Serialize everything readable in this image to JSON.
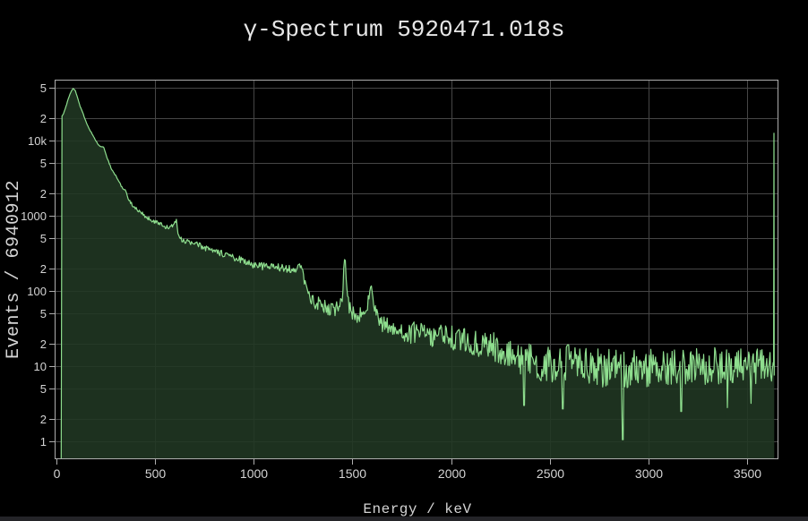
{
  "page": {
    "background": "#000000",
    "bottom_bar_color": "#242428"
  },
  "chart_data": {
    "type": "area",
    "title": "γ-Spectrum 5920471.018s",
    "xlabel": "Energy / keV",
    "ylabel": "Events / 6940912",
    "legend": false,
    "grid": true,
    "x_axis": {
      "unit": "keV",
      "min": -9,
      "max": 3659,
      "ticks": [
        {
          "v": 0,
          "label": "0"
        },
        {
          "v": 500,
          "label": "500"
        },
        {
          "v": 1000,
          "label": "1000"
        },
        {
          "v": 1500,
          "label": "1500"
        },
        {
          "v": 2000,
          "label": "2000"
        },
        {
          "v": 2500,
          "label": "2500"
        },
        {
          "v": 3000,
          "label": "3000"
        },
        {
          "v": 3500,
          "label": "3500"
        }
      ]
    },
    "y_axis": {
      "scale": "log",
      "min": 0.58,
      "max": 64000,
      "ticks": [
        {
          "v": 1,
          "label": "1"
        },
        {
          "v": 2,
          "label": "2"
        },
        {
          "v": 5,
          "label": "5"
        },
        {
          "v": 10,
          "label": "10"
        },
        {
          "v": 20,
          "label": "2"
        },
        {
          "v": 50,
          "label": "5"
        },
        {
          "v": 100,
          "label": "100"
        },
        {
          "v": 200,
          "label": "2"
        },
        {
          "v": 500,
          "label": "5"
        },
        {
          "v": 1000,
          "label": "1000"
        },
        {
          "v": 2000,
          "label": "2"
        },
        {
          "v": 5000,
          "label": "5"
        },
        {
          "v": 10000,
          "label": "10k"
        },
        {
          "v": 20000,
          "label": "2"
        },
        {
          "v": 50000,
          "label": "5"
        }
      ]
    },
    "colors": {
      "line": "#8ede8e",
      "fill": "rgba(33,56,35,0.88)",
      "grid": "#464646",
      "axis": "#adadad",
      "tick_text": "#d4d4d4",
      "title_text": "#e6e6e6"
    },
    "series": [
      {
        "name": "gamma-spectrum",
        "baseline_points": [
          [
            24,
            0.58
          ],
          [
            25,
            19000
          ],
          [
            27,
            21000
          ],
          [
            34,
            22000
          ],
          [
            40,
            24500
          ],
          [
            50,
            29500
          ],
          [
            62,
            37000
          ],
          [
            74,
            45000
          ],
          [
            85,
            49500
          ],
          [
            95,
            46500
          ],
          [
            105,
            39000
          ],
          [
            120,
            28500
          ],
          [
            137,
            22000
          ],
          [
            155,
            16500
          ],
          [
            170,
            13800
          ],
          [
            182,
            12000
          ],
          [
            200,
            9800
          ],
          [
            222,
            8300
          ],
          [
            232,
            8400
          ],
          [
            240,
            8100
          ],
          [
            252,
            6300
          ],
          [
            267,
            5000
          ],
          [
            285,
            3900
          ],
          [
            304,
            3250
          ],
          [
            320,
            2700
          ],
          [
            338,
            2300
          ],
          [
            348,
            2250
          ],
          [
            360,
            1750
          ],
          [
            372,
            1550
          ],
          [
            395,
            1280
          ],
          [
            425,
            1120
          ],
          [
            455,
            960
          ],
          [
            480,
            880
          ],
          [
            500,
            830
          ],
          [
            508,
            870
          ],
          [
            515,
            810
          ],
          [
            540,
            740
          ],
          [
            565,
            700
          ],
          [
            580,
            730
          ],
          [
            590,
            700
          ],
          [
            600,
            830
          ],
          [
            609,
            860
          ],
          [
            618,
            560
          ],
          [
            630,
            490
          ],
          [
            660,
            450
          ],
          [
            700,
            420
          ],
          [
            730,
            400
          ],
          [
            768,
            360
          ],
          [
            800,
            330
          ],
          [
            834,
            316
          ],
          [
            870,
            290
          ],
          [
            905,
            275
          ],
          [
            915,
            280
          ],
          [
            935,
            255
          ],
          [
            965,
            240
          ],
          [
            1000,
            225
          ],
          [
            1050,
            212
          ],
          [
            1090,
            208
          ],
          [
            1120,
            215
          ],
          [
            1145,
            200
          ],
          [
            1180,
            198
          ],
          [
            1210,
            200
          ],
          [
            1238,
            205
          ],
          [
            1250,
            190
          ],
          [
            1258,
            125
          ],
          [
            1270,
            100
          ],
          [
            1288,
            80
          ],
          [
            1310,
            70
          ],
          [
            1348,
            63
          ],
          [
            1390,
            59
          ],
          [
            1415,
            57
          ],
          [
            1437,
            65
          ],
          [
            1448,
            85
          ],
          [
            1455,
            160
          ],
          [
            1461,
            325
          ],
          [
            1468,
            160
          ],
          [
            1478,
            70
          ],
          [
            1490,
            54
          ],
          [
            1515,
            47
          ],
          [
            1535,
            45
          ],
          [
            1552,
            50
          ],
          [
            1570,
            60
          ],
          [
            1583,
            80
          ],
          [
            1593,
            112
          ],
          [
            1600,
            112
          ],
          [
            1612,
            55
          ],
          [
            1625,
            43
          ],
          [
            1650,
            36
          ],
          [
            1700,
            32
          ],
          [
            1750,
            30
          ],
          [
            1800,
            28
          ],
          [
            1850,
            26.5
          ],
          [
            1900,
            26
          ],
          [
            1950,
            24.5
          ],
          [
            2000,
            24
          ],
          [
            2050,
            22
          ],
          [
            2100,
            20.5
          ],
          [
            2150,
            19
          ],
          [
            2204,
            20
          ],
          [
            2230,
            17
          ],
          [
            2280,
            15
          ],
          [
            2330,
            13.5
          ],
          [
            2380,
            12.2
          ],
          [
            2430,
            11.2
          ],
          [
            2480,
            10.6
          ],
          [
            2530,
            10.2
          ],
          [
            2580,
            10.5
          ],
          [
            2614,
            13.5
          ],
          [
            2640,
            11
          ],
          [
            2665,
            10
          ],
          [
            2700,
            9.6
          ],
          [
            2760,
            9.4
          ],
          [
            2820,
            9.3
          ],
          [
            2870,
            9.2
          ],
          [
            2920,
            9.3
          ],
          [
            3000,
            9.5
          ],
          [
            3100,
            9.8
          ],
          [
            3200,
            10
          ],
          [
            3300,
            10
          ],
          [
            3400,
            10
          ],
          [
            3500,
            10.2
          ],
          [
            3600,
            10.2
          ],
          [
            3630,
            10.5
          ]
        ],
        "dips": [
          [
            2370,
            3
          ],
          [
            2565,
            2.7
          ],
          [
            2869,
            1.05
          ],
          [
            3165,
            2.5
          ],
          [
            3400,
            2.8
          ],
          [
            3520,
            3.2
          ]
        ],
        "overflow_spike": [
          [
            3634.5,
            10.3
          ],
          [
            3636,
            12500
          ],
          [
            3637.5,
            7.5
          ]
        ],
        "noise": {
          "seed": 20,
          "step_kev": 4,
          "spread": 1.8,
          "sigma_coeff": 0.4343,
          "sigma_max": 0.2
        }
      }
    ]
  }
}
